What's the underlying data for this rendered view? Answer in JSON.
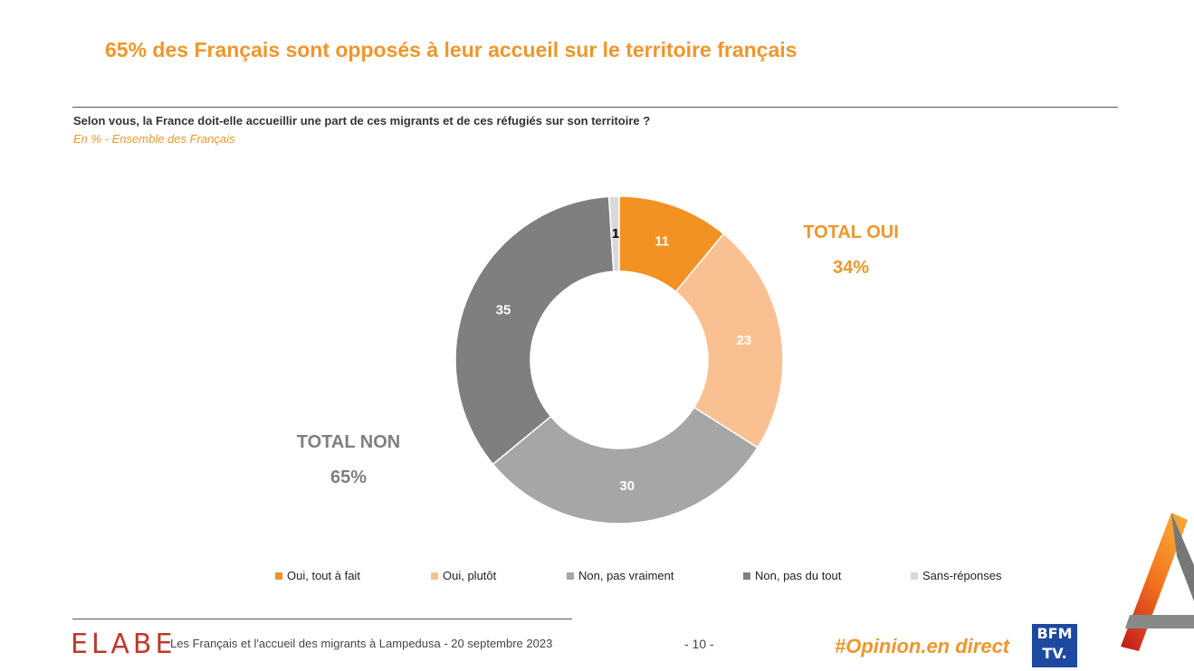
{
  "header": {
    "title": "65% des Français sont opposés à leur accueil sur le territoire français",
    "question": "Selon vous, la France doit-elle accueillir une part de ces migrants et de ces réfugiés sur son territoire ?",
    "subtitle": "En % - Ensemble des Français"
  },
  "chart_data": {
    "type": "pie",
    "variant": "donut",
    "categories": [
      "Oui, tout à fait",
      "Oui, plutôt",
      "Non, pas vraiment",
      "Non, pas du tout",
      "Sans-réponses"
    ],
    "values": [
      11,
      23,
      30,
      35,
      1
    ],
    "colors": [
      "#f29222",
      "#f9c191",
      "#a6a6a6",
      "#7f7f7f",
      "#d9d9d9"
    ],
    "label_colors": [
      "#ffffff",
      "#ffffff",
      "#ffffff",
      "#ffffff",
      "#000000"
    ],
    "legend_placement": "bottom",
    "annotations": {
      "total_oui_label": "TOTAL OUI",
      "total_oui_value": "34%",
      "total_non_label": "TOTAL NON",
      "total_non_value": "65%"
    }
  },
  "footer": {
    "logo_text": "ELABE",
    "text": "Les Français et l'accueil des migrants à Lampedusa - 20 septembre 2023",
    "page": "- 10 -",
    "hashtag": "#Opinion.en direct",
    "bfm_line1": "BFM",
    "bfm_line2": "TV."
  }
}
